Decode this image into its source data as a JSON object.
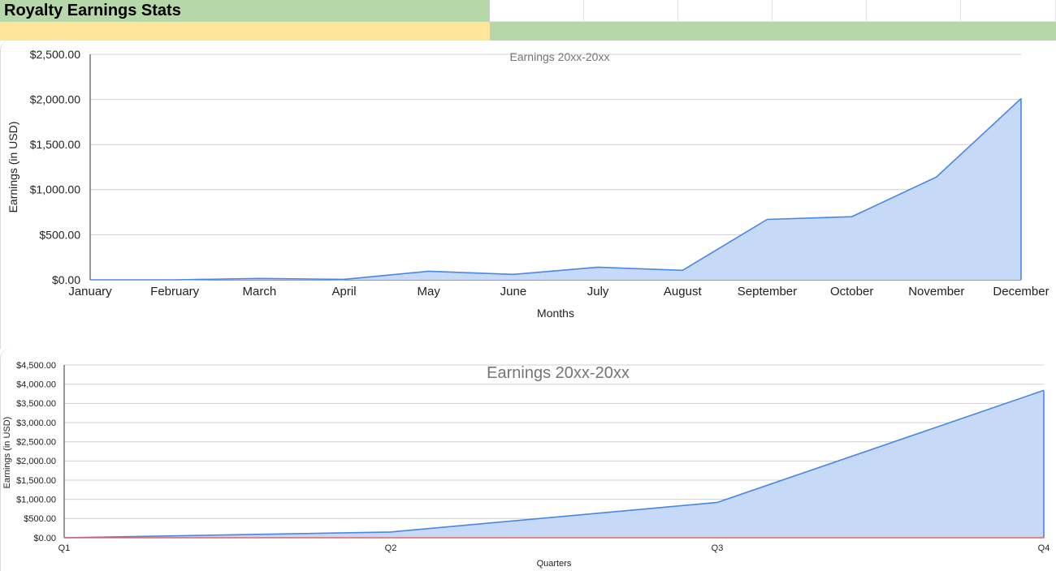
{
  "sheet": {
    "title": "Royalty Earnings Stats",
    "colors": {
      "title_bg": "#b6d7a8",
      "yellow_row": "#ffe599",
      "green_row": "#b6d7a8"
    }
  },
  "chart_data": [
    {
      "type": "area",
      "title": "Earnings 20xx-20xx",
      "xlabel": "Months",
      "ylabel": "Earnings (in USD)",
      "categories": [
        "January",
        "February",
        "March",
        "April",
        "May",
        "June",
        "July",
        "August",
        "September",
        "October",
        "November",
        "December"
      ],
      "values": [
        0,
        0,
        15,
        5,
        95,
        60,
        140,
        105,
        670,
        700,
        1140,
        2010
      ],
      "ylim": [
        0,
        2500
      ],
      "yticks": [
        "$0.00",
        "$500.00",
        "$1,000.00",
        "$1,500.00",
        "$2,000.00",
        "$2,500.00"
      ],
      "grid": true,
      "colors": {
        "line": "#4a86e8",
        "fill": "#c6d9f7"
      }
    },
    {
      "type": "area",
      "title": "Earnings 20xx-20xx",
      "xlabel": "Quarters",
      "ylabel": "Earnings (in USD)",
      "categories": [
        "Q1",
        "Q2",
        "Q3",
        "Q4"
      ],
      "series": [
        {
          "values": [
            0,
            150,
            920,
            3840
          ],
          "color": "#4a86e8",
          "fill": "#c6d9f7"
        },
        {
          "values": [
            0,
            0,
            0,
            0
          ],
          "color": "#e06666"
        }
      ],
      "ylim": [
        0,
        4500
      ],
      "yticks": [
        "$0.00",
        "$500.00",
        "$1,000.00",
        "$1,500.00",
        "$2,000.00",
        "$2,500.00",
        "$3,000.00",
        "$3,500.00",
        "$4,000.00",
        "$4,500.00"
      ],
      "grid": true
    }
  ]
}
